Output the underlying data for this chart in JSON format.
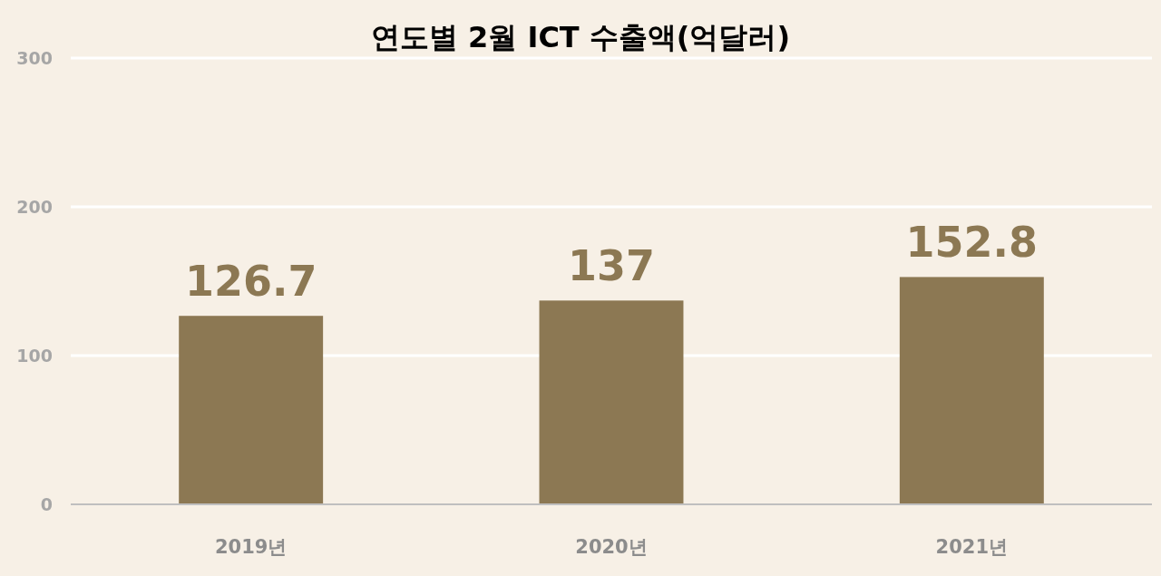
{
  "chart_data": {
    "type": "bar",
    "title": "연도별 2월 ICT 수출액(억달러)",
    "categories": [
      "2019년",
      "2020년",
      "2021년"
    ],
    "values": [
      126.7,
      137,
      152.8
    ],
    "color": "#8c7853",
    "ylim": [
      0,
      300
    ],
    "yticks": [
      0,
      100,
      200,
      300
    ],
    "grid": "y",
    "data_labels": true
  }
}
